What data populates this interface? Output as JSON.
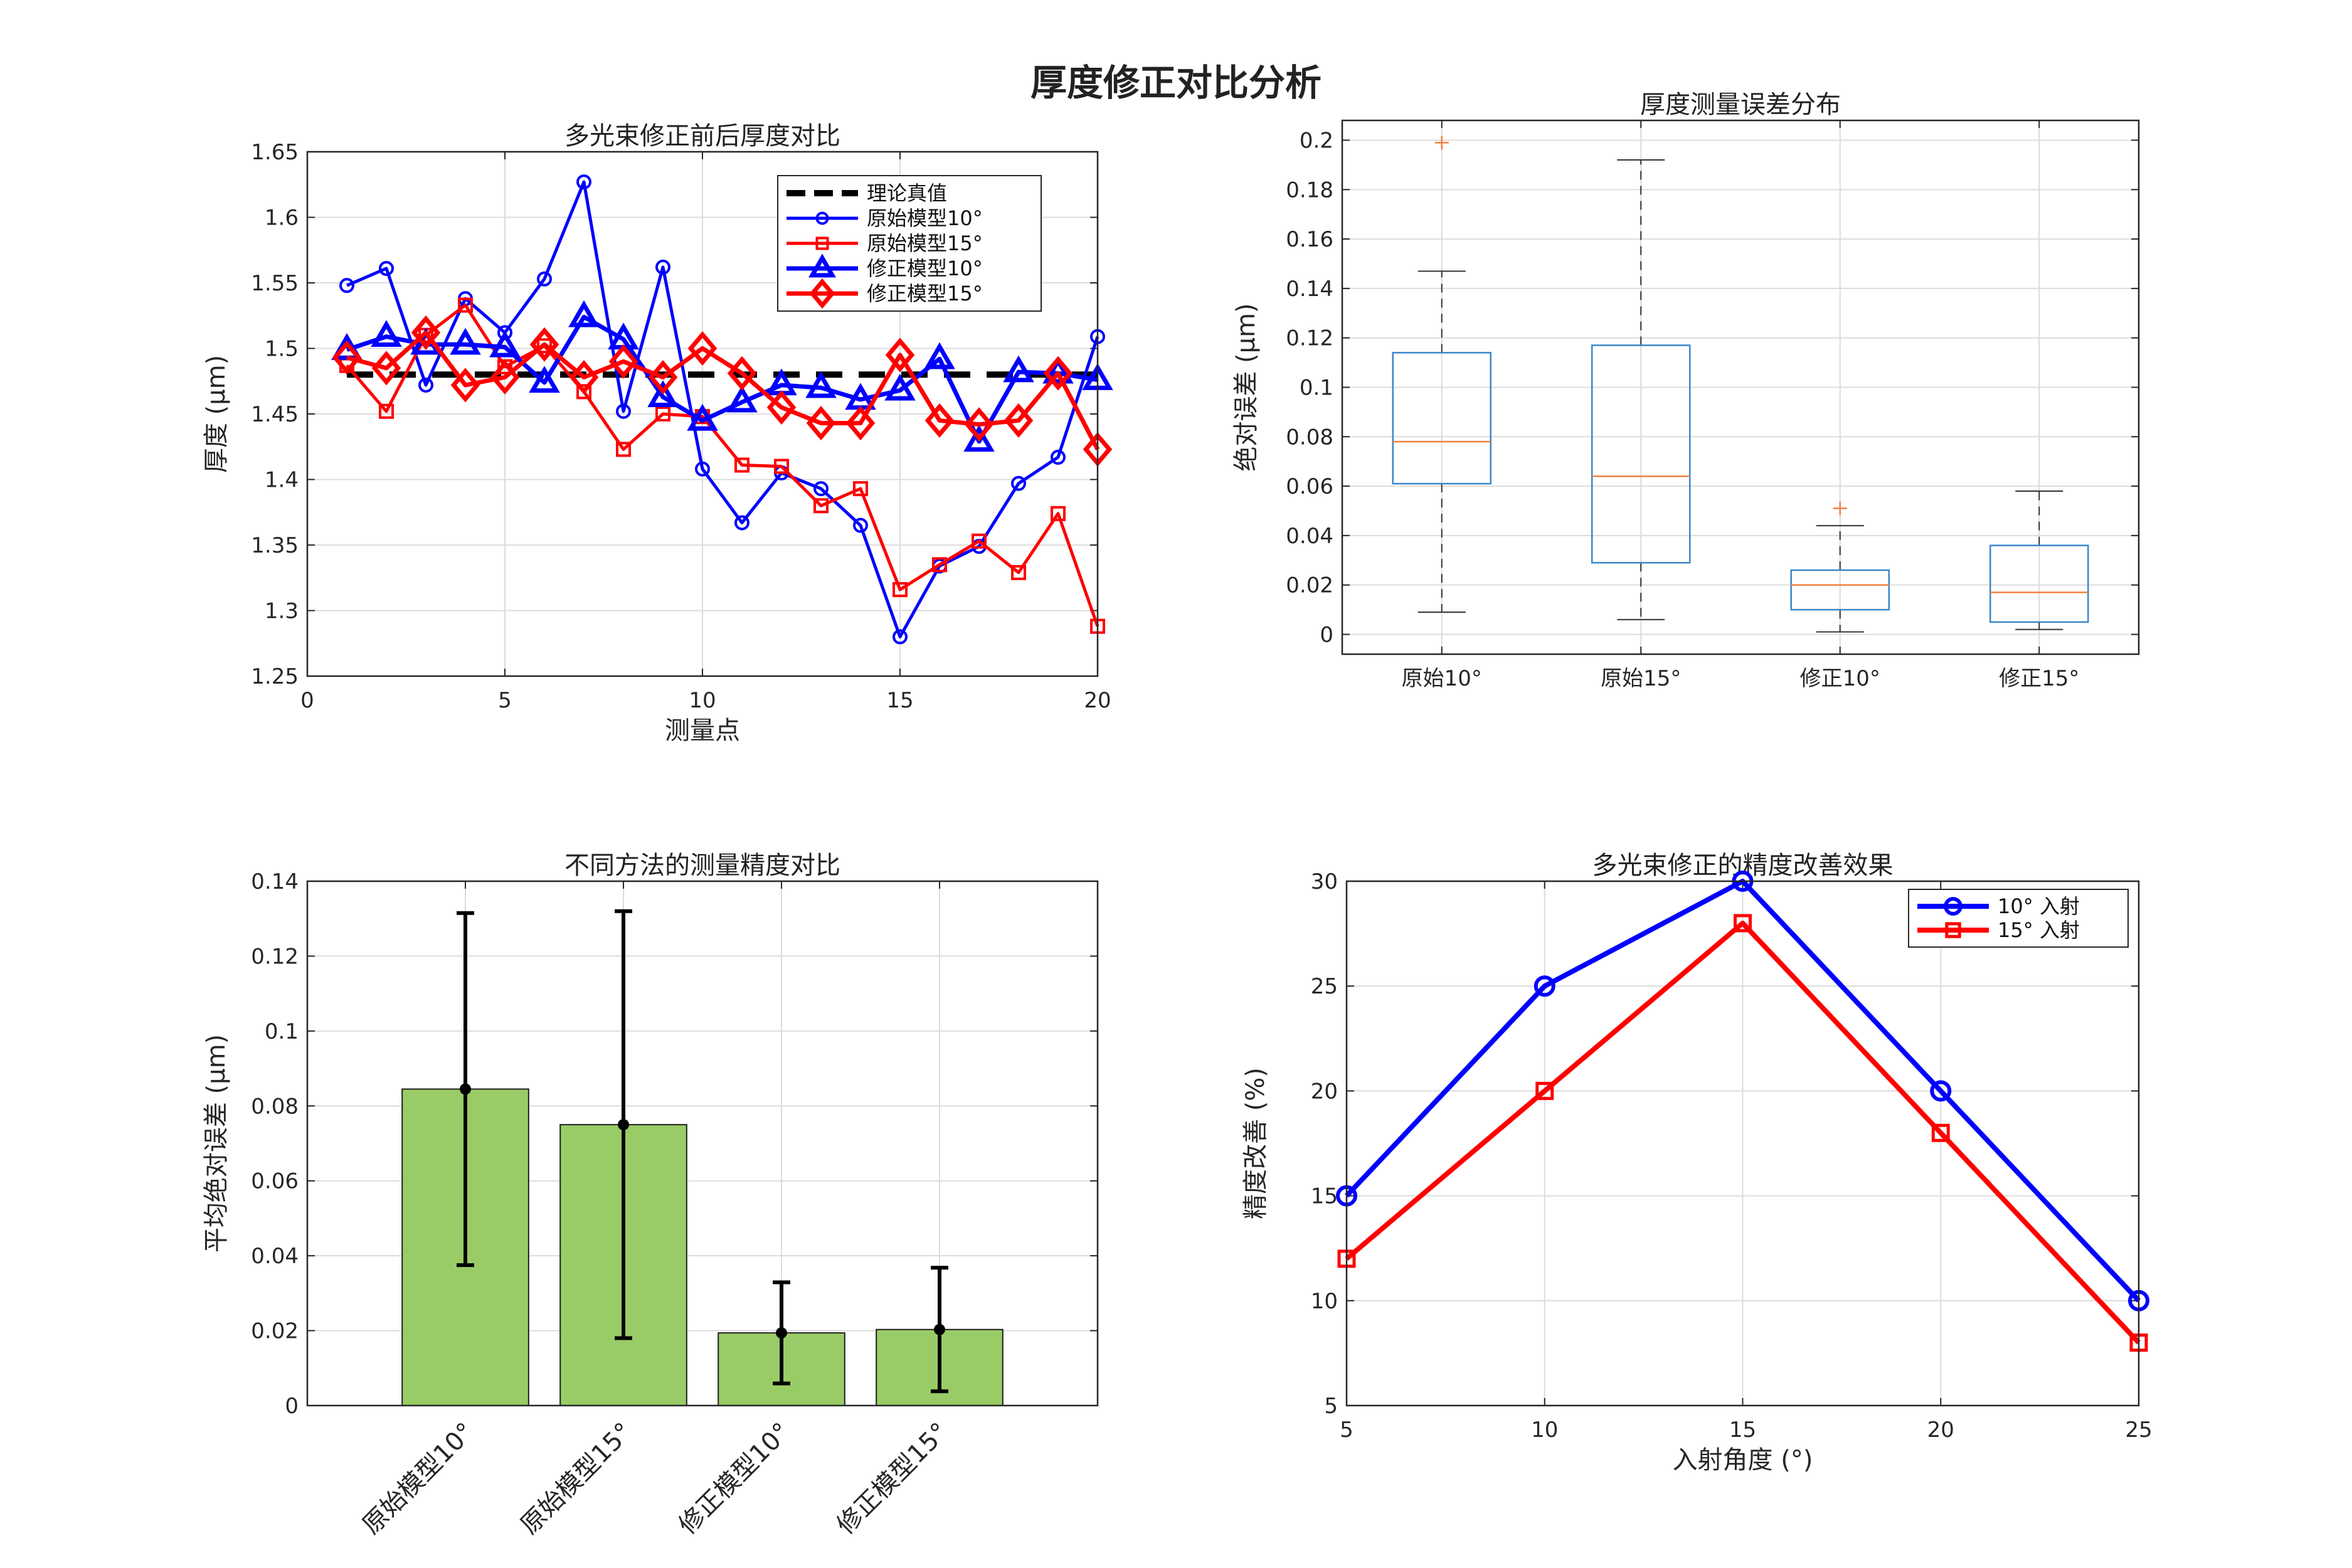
{
  "suptitle": "厚度修正对比分析",
  "charts": [
    {
      "type": "line",
      "title": "多光束修正前后厚度对比",
      "xlabel": "测量点",
      "ylabel": "厚度 (μm)",
      "xlim": [
        0,
        20
      ],
      "ylim": [
        1.25,
        1.65
      ],
      "xticks": [
        0,
        5,
        10,
        15,
        20
      ],
      "xtick_labels": [
        "0",
        "5",
        "10",
        "15",
        "20"
      ],
      "yticks": [
        1.25,
        1.3,
        1.35,
        1.4,
        1.45,
        1.5,
        1.55,
        1.6,
        1.65
      ],
      "ytick_labels": [
        "1.25",
        "1.3",
        "1.35",
        "1.4",
        "1.45",
        "1.5",
        "1.55",
        "1.6",
        "1.65"
      ],
      "grid": true,
      "legend_position": "top-right",
      "x": [
        1,
        2,
        3,
        4,
        5,
        6,
        7,
        8,
        9,
        10,
        11,
        12,
        13,
        14,
        15,
        16,
        17,
        18,
        19,
        20
      ],
      "series": [
        {
          "name": "理论真值",
          "style": "dashed",
          "marker": "none",
          "color": "#000000",
          "values": [
            1.48,
            1.48,
            1.48,
            1.48,
            1.48,
            1.48,
            1.48,
            1.48,
            1.48,
            1.48,
            1.48,
            1.48,
            1.48,
            1.48,
            1.48,
            1.48,
            1.48,
            1.48,
            1.48,
            1.48
          ]
        },
        {
          "name": "原始模型10°",
          "style": "solid",
          "marker": "circle",
          "color": "#0000ff",
          "values": [
            1.548,
            1.561,
            1.472,
            1.538,
            1.512,
            1.553,
            1.627,
            1.452,
            1.562,
            1.408,
            1.367,
            1.405,
            1.393,
            1.365,
            1.28,
            1.334,
            1.349,
            1.397,
            1.417,
            1.509
          ]
        },
        {
          "name": "原始模型15°",
          "style": "solid",
          "marker": "square",
          "color": "#ff0000",
          "values": [
            1.487,
            1.452,
            1.51,
            1.533,
            1.486,
            1.502,
            1.467,
            1.423,
            1.45,
            1.448,
            1.411,
            1.41,
            1.38,
            1.393,
            1.316,
            1.335,
            1.353,
            1.329,
            1.374,
            1.288
          ]
        },
        {
          "name": "修正模型10°",
          "style": "solid",
          "marker": "triangle",
          "color": "#0000ff",
          "values": [
            1.499,
            1.509,
            1.503,
            1.503,
            1.501,
            1.474,
            1.524,
            1.507,
            1.463,
            1.445,
            1.459,
            1.472,
            1.47,
            1.461,
            1.468,
            1.492,
            1.429,
            1.482,
            1.481,
            1.476
          ]
        },
        {
          "name": "修正模型15°",
          "style": "solid",
          "marker": "diamond",
          "color": "#ff0000",
          "values": [
            1.493,
            1.485,
            1.512,
            1.472,
            1.478,
            1.503,
            1.478,
            1.49,
            1.478,
            1.5,
            1.481,
            1.455,
            1.443,
            1.443,
            1.495,
            1.445,
            1.442,
            1.445,
            1.481,
            1.423
          ]
        }
      ]
    },
    {
      "type": "box",
      "title": "厚度测量误差分布",
      "xlabel": "",
      "ylabel": "绝对误差 (μm)",
      "ylim": [
        -0.008,
        0.208
      ],
      "yticks": [
        0,
        0.02,
        0.04,
        0.06,
        0.08,
        0.1,
        0.12,
        0.14,
        0.16,
        0.18,
        0.2
      ],
      "ytick_labels": [
        "0",
        "0.02",
        "0.04",
        "0.06",
        "0.08",
        "0.1",
        "0.12",
        "0.14",
        "0.16",
        "0.18",
        "0.2"
      ],
      "grid": true,
      "categories": [
        "原始10°",
        "原始15°",
        "修正10°",
        "修正15°"
      ],
      "boxes": [
        {
          "min": 0.009,
          "q1": 0.061,
          "median": 0.078,
          "q3": 0.114,
          "max": 0.147,
          "outliers": [
            0.199
          ]
        },
        {
          "min": 0.006,
          "q1": 0.029,
          "median": 0.064,
          "q3": 0.117,
          "max": 0.192,
          "outliers": []
        },
        {
          "min": 0.001,
          "q1": 0.01,
          "median": 0.02,
          "q3": 0.026,
          "max": 0.044,
          "outliers": [
            0.051
          ]
        },
        {
          "min": 0.002,
          "q1": 0.005,
          "median": 0.017,
          "q3": 0.036,
          "max": 0.058,
          "outliers": []
        }
      ]
    },
    {
      "type": "bar",
      "title": "不同方法的测量精度对比",
      "xlabel": "",
      "ylabel": "平均绝对误差 (μm)",
      "ylim": [
        0,
        0.14
      ],
      "xlim": [
        0,
        5
      ],
      "yticks": [
        0,
        0.02,
        0.04,
        0.06,
        0.08,
        0.1,
        0.12,
        0.14
      ],
      "ytick_labels": [
        "0",
        "0.02",
        "0.04",
        "0.06",
        "0.08",
        "0.1",
        "0.12",
        "0.14"
      ],
      "grid": true,
      "bar_color": "#99cc66",
      "categories": [
        "原始模型10°",
        "原始模型15°",
        "修正模型10°",
        "修正模型15°"
      ],
      "values": [
        0.0845,
        0.075,
        0.0194,
        0.0203
      ],
      "errors": [
        0.047,
        0.057,
        0.0135,
        0.0165
      ]
    },
    {
      "type": "line",
      "title": "多光束修正的精度改善效果",
      "xlabel": "入射角度 (°)",
      "ylabel": "精度改善 (%)",
      "xlim": [
        5,
        25
      ],
      "ylim": [
        5,
        30
      ],
      "xticks": [
        5,
        10,
        15,
        20,
        25
      ],
      "xtick_labels": [
        "5",
        "10",
        "15",
        "20",
        "25"
      ],
      "yticks": [
        5,
        10,
        15,
        20,
        25,
        30
      ],
      "ytick_labels": [
        "5",
        "10",
        "15",
        "20",
        "25",
        "30"
      ],
      "grid": true,
      "legend_position": "top-right",
      "x": [
        5,
        10,
        15,
        20,
        25
      ],
      "series": [
        {
          "name": "10° 入射",
          "style": "solid",
          "marker": "circle",
          "color": "#0000ff",
          "values": [
            15,
            25,
            30,
            20,
            10
          ]
        },
        {
          "name": "15° 入射",
          "style": "solid",
          "marker": "square",
          "color": "#ff0000",
          "values": [
            12,
            20,
            28,
            18,
            8
          ]
        }
      ]
    }
  ]
}
